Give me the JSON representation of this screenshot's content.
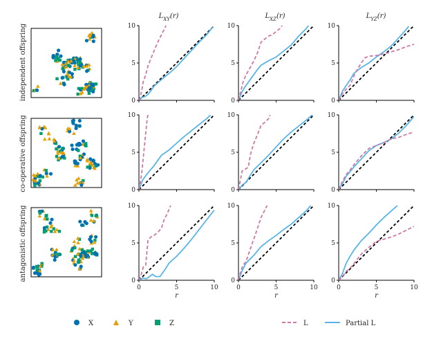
{
  "chart_data": {
    "type": "line",
    "col_titles": [
      "L_XY(r)",
      "L_XZ(r)",
      "L_YZ(r)"
    ],
    "row_labels": [
      "independent offspring",
      "co-operative offspring",
      "antagonistic offspring"
    ],
    "xlabel": "r",
    "xlim": [
      0,
      10
    ],
    "ylim": [
      0,
      10
    ],
    "xticks": [
      0,
      5,
      10
    ],
    "yticks": [
      0,
      5,
      10
    ],
    "grid": false,
    "series_names": [
      "L",
      "Partial L"
    ],
    "colors": {
      "L": "#CC78A7",
      "Partial L": "#56B4E9",
      "diagonal": "#000000",
      "X": "#0072B2",
      "Y": "#E69F00",
      "Z": "#009E73"
    },
    "point_legend": [
      {
        "label": "X",
        "marker": "circle",
        "color": "#0072B2"
      },
      {
        "label": "Y",
        "marker": "triangle",
        "color": "#E69F00"
      },
      {
        "label": "Z",
        "marker": "square",
        "color": "#009E73"
      }
    ],
    "line_legend": [
      {
        "label": "L",
        "style": "dashed",
        "color": "#CC78A7"
      },
      {
        "label": "Partial L",
        "style": "solid",
        "color": "#56B4E9"
      }
    ],
    "panels": [
      {
        "row": 0,
        "col": 0,
        "L": [
          [
            0,
            0
          ],
          [
            0.2,
            0.5
          ],
          [
            0.4,
            1.5
          ],
          [
            0.6,
            2.6
          ],
          [
            0.9,
            3.4
          ],
          [
            1.2,
            4.6
          ],
          [
            1.6,
            5.6
          ],
          [
            2.0,
            6.6
          ],
          [
            2.5,
            7.8
          ],
          [
            3.0,
            8.8
          ],
          [
            3.4,
            9.6
          ],
          [
            3.6,
            10
          ]
        ],
        "partial": [
          [
            0,
            0
          ],
          [
            0.4,
            0.4
          ],
          [
            0.8,
            0.5
          ],
          [
            1.2,
            0.8
          ],
          [
            1.6,
            1.3
          ],
          [
            2,
            1.9
          ],
          [
            3,
            2.8
          ],
          [
            4,
            3.6
          ],
          [
            5,
            4.5
          ],
          [
            6,
            5.6
          ],
          [
            7,
            6.7
          ],
          [
            8,
            7.8
          ],
          [
            9,
            8.8
          ],
          [
            9.8,
            9.8
          ]
        ]
      },
      {
        "row": 0,
        "col": 1,
        "L": [
          [
            0,
            0
          ],
          [
            0.3,
            1.2
          ],
          [
            0.6,
            2.4
          ],
          [
            1,
            3.4
          ],
          [
            1.5,
            4.3
          ],
          [
            2,
            5.2
          ],
          [
            2.5,
            6.3
          ],
          [
            3,
            7.8
          ],
          [
            3.5,
            8.2
          ],
          [
            4,
            8.6
          ],
          [
            4.5,
            8.8
          ],
          [
            5,
            9.2
          ],
          [
            5.5,
            9.6
          ],
          [
            5.8,
            10
          ]
        ],
        "partial": [
          [
            0,
            0
          ],
          [
            0.5,
            1.2
          ],
          [
            1,
            2.0
          ],
          [
            1.5,
            2.7
          ],
          [
            2,
            3.4
          ],
          [
            2.5,
            4.1
          ],
          [
            3,
            4.7
          ],
          [
            4,
            5.3
          ],
          [
            5,
            5.8
          ],
          [
            6,
            6.6
          ],
          [
            7,
            7.4
          ],
          [
            8,
            8.6
          ],
          [
            9,
            9.6
          ],
          [
            9.3,
            10
          ]
        ]
      },
      {
        "row": 0,
        "col": 2,
        "L": [
          [
            0,
            0
          ],
          [
            0.5,
            0.9
          ],
          [
            1,
            1.5
          ],
          [
            1.5,
            2.0
          ],
          [
            2,
            3.2
          ],
          [
            2.5,
            4.2
          ],
          [
            3,
            5.0
          ],
          [
            3.5,
            5.7
          ],
          [
            4,
            5.9
          ],
          [
            5,
            6.0
          ],
          [
            6,
            6.2
          ],
          [
            7,
            6.5
          ],
          [
            8,
            6.8
          ],
          [
            9,
            7.2
          ],
          [
            10,
            7.5
          ]
        ],
        "partial": [
          [
            0,
            0
          ],
          [
            0.5,
            1.2
          ],
          [
            1,
            2.0
          ],
          [
            1.5,
            2.7
          ],
          [
            2,
            3.6
          ],
          [
            3,
            4.4
          ],
          [
            4,
            5.0
          ],
          [
            5,
            5.8
          ],
          [
            6,
            6.5
          ],
          [
            7,
            7.3
          ],
          [
            8,
            8.4
          ],
          [
            8.8,
            9.3
          ],
          [
            9.3,
            9.9
          ]
        ]
      },
      {
        "row": 1,
        "col": 0,
        "L": [
          [
            0,
            0
          ],
          [
            0.2,
            1.0
          ],
          [
            0.4,
            2.5
          ],
          [
            0.6,
            4.5
          ],
          [
            0.8,
            6.5
          ],
          [
            1,
            8.5
          ],
          [
            1.1,
            9.5
          ],
          [
            1.2,
            10
          ]
        ],
        "partial": [
          [
            0,
            0
          ],
          [
            0.5,
            1.3
          ],
          [
            1,
            2.0
          ],
          [
            2,
            3.2
          ],
          [
            3,
            4.6
          ],
          [
            4,
            5.3
          ],
          [
            5,
            6.2
          ],
          [
            6,
            7.1
          ],
          [
            7,
            7.9
          ],
          [
            8,
            8.7
          ],
          [
            9,
            9.5
          ],
          [
            9.5,
            10
          ]
        ]
      },
      {
        "row": 1,
        "col": 1,
        "L": [
          [
            0,
            0
          ],
          [
            0.2,
            1.0
          ],
          [
            0.5,
            2.5
          ],
          [
            1,
            2.8
          ],
          [
            1.3,
            3.0
          ],
          [
            1.6,
            4.7
          ],
          [
            2,
            6.1
          ],
          [
            2.5,
            7.3
          ],
          [
            3,
            8.6
          ],
          [
            3.5,
            9.0
          ],
          [
            4,
            9.5
          ],
          [
            4.2,
            10
          ]
        ],
        "partial": [
          [
            0,
            0
          ],
          [
            0.5,
            0.6
          ],
          [
            1,
            1.0
          ],
          [
            1.5,
            1.8
          ],
          [
            2,
            2.6
          ],
          [
            3,
            3.6
          ],
          [
            4,
            4.6
          ],
          [
            5,
            5.7
          ],
          [
            6,
            6.8
          ],
          [
            7,
            7.7
          ],
          [
            8,
            8.5
          ],
          [
            9,
            9.3
          ],
          [
            9.8,
            10
          ]
        ]
      },
      {
        "row": 1,
        "col": 2,
        "L": [
          [
            0,
            0
          ],
          [
            0.5,
            1.1
          ],
          [
            1,
            2.0
          ],
          [
            1.5,
            2.6
          ],
          [
            2,
            3.3
          ],
          [
            3,
            4.5
          ],
          [
            4,
            5.5
          ],
          [
            5,
            5.9
          ],
          [
            6,
            6.3
          ],
          [
            7,
            6.8
          ],
          [
            8,
            7.0
          ],
          [
            9,
            7.4
          ],
          [
            10,
            7.7
          ]
        ],
        "partial": [
          [
            0,
            0
          ],
          [
            0.5,
            0.8
          ],
          [
            1,
            1.8
          ],
          [
            2,
            3.0
          ],
          [
            3,
            4.1
          ],
          [
            4,
            5.2
          ],
          [
            5,
            5.9
          ],
          [
            6,
            6.3
          ],
          [
            7,
            6.8
          ],
          [
            8,
            7.6
          ],
          [
            9,
            8.6
          ],
          [
            10,
            9.8
          ]
        ]
      },
      {
        "row": 2,
        "col": 0,
        "L": [
          [
            0,
            0
          ],
          [
            0.3,
            0.8
          ],
          [
            0.6,
            1.8
          ],
          [
            0.9,
            2.0
          ],
          [
            1.2,
            5.4
          ],
          [
            1.6,
            5.8
          ],
          [
            2,
            6.0
          ],
          [
            2.5,
            6.4
          ],
          [
            3,
            7.0
          ],
          [
            3.3,
            8.0
          ],
          [
            3.8,
            9.0
          ],
          [
            4.2,
            10
          ]
        ],
        "partial": [
          [
            0,
            0
          ],
          [
            0.5,
            0.3
          ],
          [
            1,
            0.2
          ],
          [
            1.4,
            0.5
          ],
          [
            1.8,
            0.8
          ],
          [
            2.2,
            0.5
          ],
          [
            2.8,
            0.5
          ],
          [
            3.5,
            1.5
          ],
          [
            4,
            2.3
          ],
          [
            5,
            3.2
          ],
          [
            6,
            4.3
          ],
          [
            7,
            5.5
          ],
          [
            8,
            6.8
          ],
          [
            9,
            8.1
          ],
          [
            10,
            9.4
          ]
        ]
      },
      {
        "row": 2,
        "col": 1,
        "L": [
          [
            0,
            0
          ],
          [
            0.3,
            1.2
          ],
          [
            0.6,
            2.0
          ],
          [
            1,
            2.5
          ],
          [
            1.5,
            4.0
          ],
          [
            2,
            5.4
          ],
          [
            2.5,
            6.9
          ],
          [
            3,
            8.4
          ],
          [
            3.4,
            9.2
          ],
          [
            3.8,
            10
          ]
        ],
        "partial": [
          [
            0,
            0
          ],
          [
            0.5,
            1.3
          ],
          [
            1,
            2.3
          ],
          [
            2,
            3.3
          ],
          [
            3,
            4.5
          ],
          [
            4,
            5.3
          ],
          [
            5,
            6.0
          ],
          [
            6,
            6.8
          ],
          [
            7,
            7.5
          ],
          [
            8,
            8.4
          ],
          [
            9,
            9.3
          ],
          [
            9.6,
            10
          ]
        ]
      },
      {
        "row": 2,
        "col": 2,
        "L": [
          [
            0,
            0
          ],
          [
            0.5,
            0.5
          ],
          [
            1,
            1.2
          ],
          [
            1.5,
            1.6
          ],
          [
            2,
            2.2
          ],
          [
            3,
            3.5
          ],
          [
            4,
            4.4
          ],
          [
            5,
            5.2
          ],
          [
            6,
            5.5
          ],
          [
            7,
            5.8
          ],
          [
            8,
            6.2
          ],
          [
            9,
            6.7
          ],
          [
            10,
            7.2
          ]
        ],
        "partial": [
          [
            0,
            0
          ],
          [
            0.5,
            0.9
          ],
          [
            1,
            2.3
          ],
          [
            1.5,
            3.2
          ],
          [
            2,
            4.0
          ],
          [
            3,
            5.3
          ],
          [
            4,
            6.3
          ],
          [
            5,
            7.4
          ],
          [
            6,
            8.4
          ],
          [
            7,
            9.3
          ],
          [
            7.8,
            10
          ]
        ]
      }
    ]
  }
}
